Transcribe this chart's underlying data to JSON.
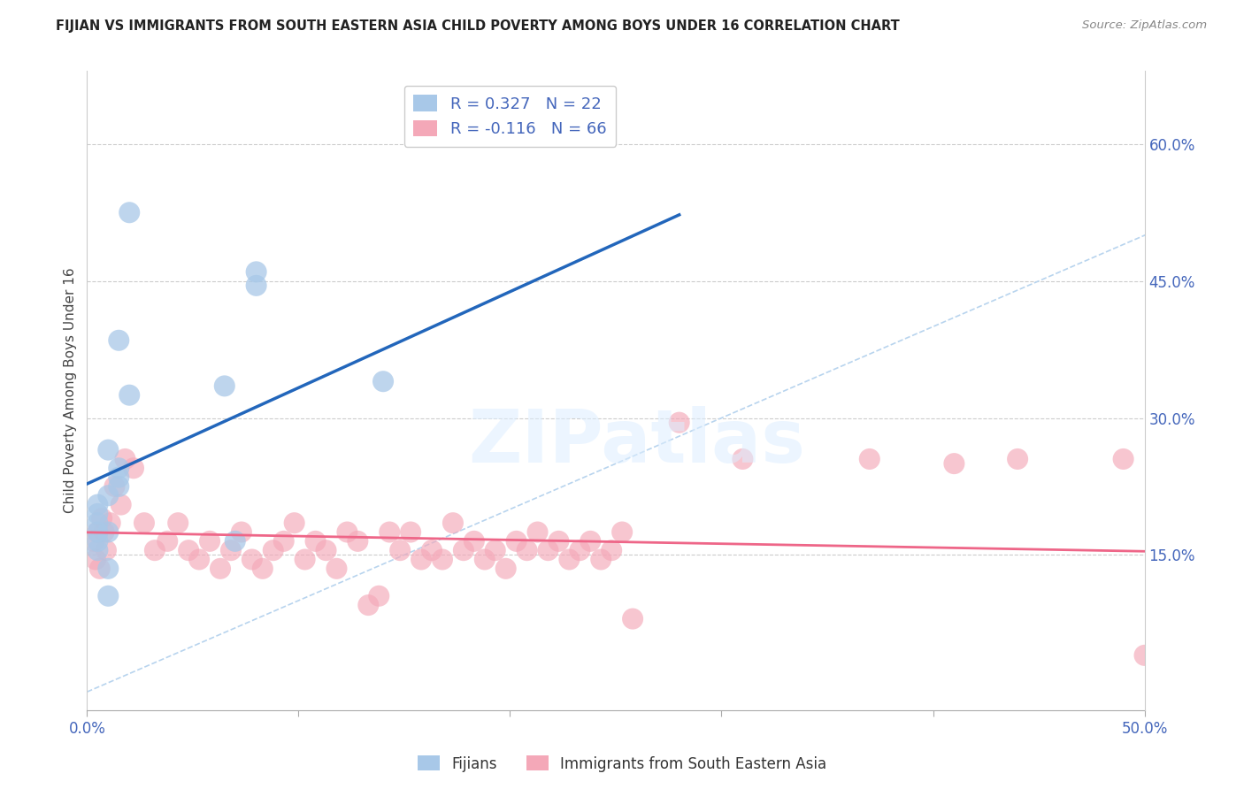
{
  "title": "FIJIAN VS IMMIGRANTS FROM SOUTH EASTERN ASIA CHILD POVERTY AMONG BOYS UNDER 16 CORRELATION CHART",
  "source": "Source: ZipAtlas.com",
  "ylabel": "Child Poverty Among Boys Under 16",
  "xlim": [
    0.0,
    0.5
  ],
  "ylim": [
    -0.02,
    0.68
  ],
  "yticks_right": [
    0.15,
    0.3,
    0.45,
    0.6
  ],
  "xtick_positions": [
    0.0,
    0.1,
    0.2,
    0.3,
    0.4,
    0.5
  ],
  "xtick_labels_show": {
    "0.0": "0.0%",
    "0.5": "50.0%"
  },
  "fijian_R": 0.327,
  "fijian_N": 22,
  "immigrant_R": -0.116,
  "immigrant_N": 66,
  "fijian_color": "#a8c8e8",
  "immigrant_color": "#f4a8b8",
  "fijian_line_color": "#2266bb",
  "immigrant_line_color": "#ee6688",
  "diagonal_color": "#b8d4ee",
  "legend_fijian_label": "Fijians",
  "legend_immigrant_label": "Immigrants from South Eastern Asia",
  "watermark_text": "ZIPatlas",
  "fijian_x": [
    0.005,
    0.01,
    0.005,
    0.015,
    0.01,
    0.015,
    0.02,
    0.005,
    0.01,
    0.015,
    0.065,
    0.08,
    0.07,
    0.02,
    0.015,
    0.01,
    0.01,
    0.005,
    0.005,
    0.005,
    0.14,
    0.08
  ],
  "fijian_y": [
    0.185,
    0.215,
    0.155,
    0.245,
    0.265,
    0.225,
    0.325,
    0.205,
    0.175,
    0.235,
    0.335,
    0.445,
    0.165,
    0.525,
    0.385,
    0.105,
    0.135,
    0.165,
    0.175,
    0.195,
    0.34,
    0.46
  ],
  "immigrant_x": [
    0.005,
    0.007,
    0.009,
    0.011,
    0.003,
    0.013,
    0.016,
    0.004,
    0.006,
    0.008,
    0.018,
    0.022,
    0.027,
    0.032,
    0.038,
    0.043,
    0.048,
    0.053,
    0.058,
    0.063,
    0.068,
    0.073,
    0.078,
    0.083,
    0.088,
    0.093,
    0.098,
    0.103,
    0.108,
    0.113,
    0.118,
    0.123,
    0.128,
    0.133,
    0.138,
    0.143,
    0.148,
    0.153,
    0.158,
    0.163,
    0.168,
    0.173,
    0.178,
    0.183,
    0.188,
    0.193,
    0.198,
    0.203,
    0.208,
    0.213,
    0.218,
    0.223,
    0.228,
    0.233,
    0.238,
    0.243,
    0.248,
    0.253,
    0.258,
    0.28,
    0.31,
    0.37,
    0.41,
    0.44,
    0.49,
    0.5
  ],
  "immigrant_y": [
    0.175,
    0.19,
    0.155,
    0.185,
    0.165,
    0.225,
    0.205,
    0.145,
    0.135,
    0.175,
    0.255,
    0.245,
    0.185,
    0.155,
    0.165,
    0.185,
    0.155,
    0.145,
    0.165,
    0.135,
    0.155,
    0.175,
    0.145,
    0.135,
    0.155,
    0.165,
    0.185,
    0.145,
    0.165,
    0.155,
    0.135,
    0.175,
    0.165,
    0.095,
    0.105,
    0.175,
    0.155,
    0.175,
    0.145,
    0.155,
    0.145,
    0.185,
    0.155,
    0.165,
    0.145,
    0.155,
    0.135,
    0.165,
    0.155,
    0.175,
    0.155,
    0.165,
    0.145,
    0.155,
    0.165,
    0.145,
    0.155,
    0.175,
    0.08,
    0.295,
    0.255,
    0.255,
    0.25,
    0.255,
    0.255,
    0.04
  ]
}
